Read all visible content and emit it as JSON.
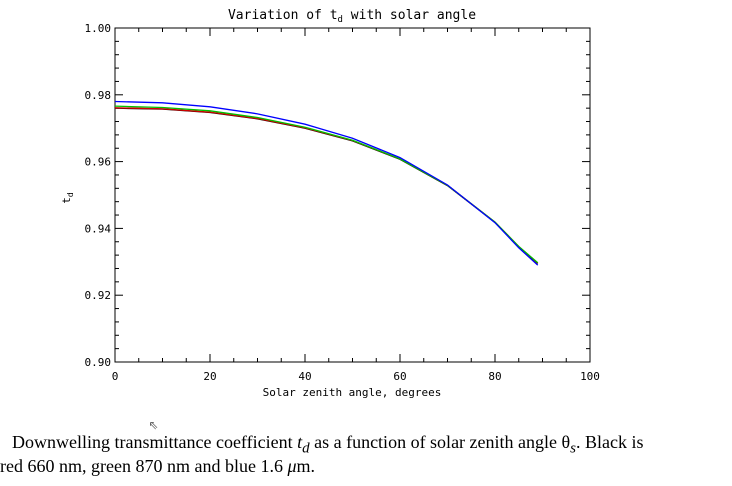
{
  "chart_data": {
    "type": "line",
    "title": "Variation of t",
    "title_sub": "d",
    "title_rest": " with solar angle",
    "xlabel": "Solar zenith angle, degrees",
    "ylabel": "t",
    "ylabel_sub": "d",
    "xlim": [
      0,
      100
    ],
    "ylim": [
      0.9,
      1.0
    ],
    "xticks": [
      "0",
      "20",
      "40",
      "60",
      "80",
      "100"
    ],
    "yticks": [
      "0.90",
      "0.92",
      "0.94",
      "0.96",
      "0.98",
      "1.00"
    ],
    "grid": false,
    "x": [
      0,
      10,
      20,
      30,
      40,
      50,
      60,
      70,
      80,
      85,
      89
    ],
    "series": [
      {
        "color": "#000000",
        "values": [
          0.976,
          0.9757,
          0.9747,
          0.9728,
          0.97,
          0.9662,
          0.9607,
          0.9528,
          0.9418,
          0.9345,
          0.9295
        ]
      },
      {
        "color": "#d00000",
        "values": [
          0.9761,
          0.9758,
          0.9748,
          0.9729,
          0.9701,
          0.9663,
          0.9608,
          0.9529,
          0.9419,
          0.9346,
          0.9296
        ]
      },
      {
        "color": "#00c000",
        "values": [
          0.9766,
          0.9762,
          0.9752,
          0.9732,
          0.9703,
          0.9664,
          0.9608,
          0.9529,
          0.9419,
          0.9346,
          0.9297
        ]
      },
      {
        "color": "#0000ff",
        "values": [
          0.978,
          0.9776,
          0.9764,
          0.9743,
          0.9712,
          0.967,
          0.9612,
          0.953,
          0.9417,
          0.9342,
          0.929
        ]
      }
    ]
  },
  "caption": {
    "line1_a": "Downwelling transmittance coefficient ",
    "line1_t": "t",
    "line1_d": "d",
    "line1_b": " as a function of solar zenith angle θ",
    "line1_s": "s",
    "line1_c": ".  Black is",
    "line2_a": "red 660 nm, green 870 nm and blue 1.6 ",
    "line2_mu": "μ",
    "line2_b": "m."
  }
}
